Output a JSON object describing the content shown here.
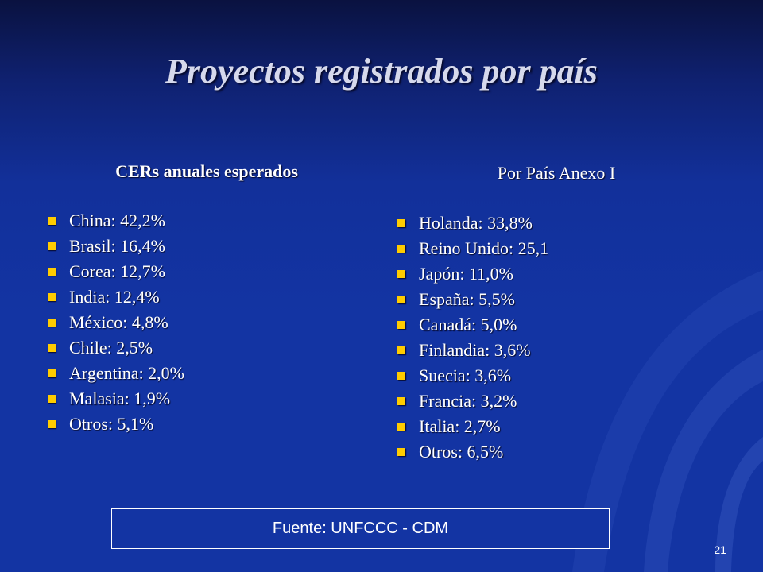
{
  "slide": {
    "title": "Proyectos registrados por país",
    "page_number": "21"
  },
  "left_column": {
    "heading": "CERs anuales esperados",
    "items": [
      "China: 42,2%",
      "Brasil: 16,4%",
      "Corea: 12,7%",
      "India: 12,4%",
      "México: 4,8%",
      "Chile: 2,5%",
      "Argentina: 2,0%",
      "Malasia: 1,9%",
      "Otros: 5,1%"
    ]
  },
  "right_column": {
    "heading": "Por País Anexo I",
    "items": [
      "Holanda: 33,8%",
      "Reino Unido: 25,1",
      "Japón: 11,0%",
      "España: 5,5%",
      "Canadá: 5,0%",
      "Finlandia: 3,6%",
      "Suecia: 3,6%",
      "Francia: 3,2%",
      "Italia: 2,7%",
      "Otros: 6,5%"
    ]
  },
  "source": {
    "text": "Fuente: UNFCCC - CDM"
  },
  "colors": {
    "background": "#1334a3",
    "background_top": "#0a1240",
    "bullet": "#ffcc00",
    "title": "#d6d9ec",
    "text": "#ffffff"
  }
}
